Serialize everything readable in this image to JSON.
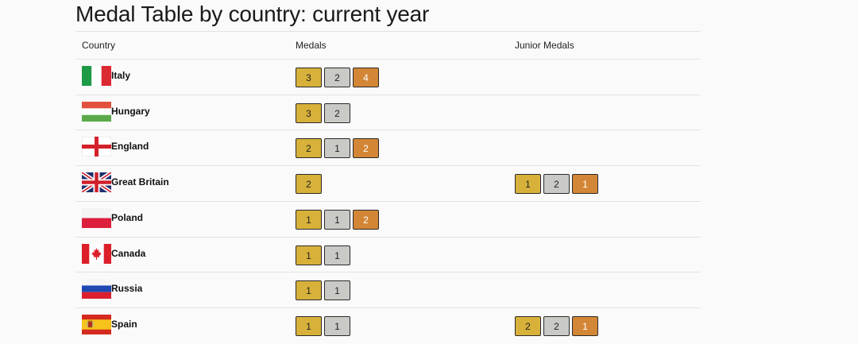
{
  "title": "Medal Table by country: current year",
  "headers": {
    "country": "Country",
    "medals": "Medals",
    "junior": "Junior Medals"
  },
  "rows": [
    {
      "country": "Italy",
      "flag": "italy-flag",
      "medals": [
        3,
        2,
        4
      ],
      "junior": []
    },
    {
      "country": "Hungary",
      "flag": "hungary-flag",
      "medals": [
        3,
        2
      ],
      "junior": []
    },
    {
      "country": "England",
      "flag": "england-flag",
      "medals": [
        2,
        1,
        2
      ],
      "junior": []
    },
    {
      "country": "Great Britain",
      "flag": "great-britain-flag",
      "medals": [
        2
      ],
      "junior": [
        1,
        2,
        1
      ]
    },
    {
      "country": "Poland",
      "flag": "poland-flag",
      "medals": [
        1,
        1,
        2
      ],
      "junior": []
    },
    {
      "country": "Canada",
      "flag": "canada-flag",
      "medals": [
        1,
        1
      ],
      "junior": []
    },
    {
      "country": "Russia",
      "flag": "russia-flag",
      "medals": [
        1,
        1
      ],
      "junior": []
    },
    {
      "country": "Spain",
      "flag": "spain-flag",
      "medals": [
        1,
        1
      ],
      "junior": [
        2,
        2,
        1
      ]
    }
  ],
  "colors": {
    "gold": "#d8b13a",
    "silver": "#c9cac6",
    "bronze": "#d38635"
  }
}
